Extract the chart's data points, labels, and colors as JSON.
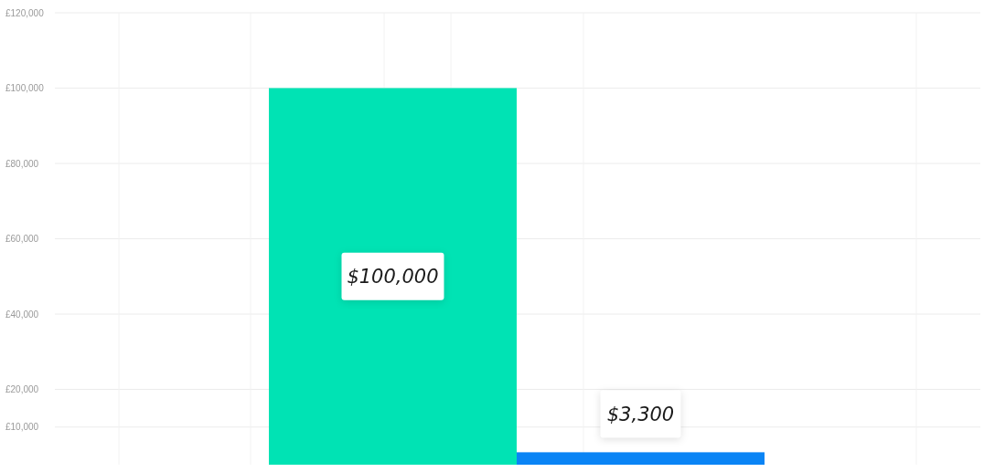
{
  "chart_data": {
    "type": "bar",
    "categories": [
      null,
      null
    ],
    "values": [
      100000,
      3300
    ],
    "colors": [
      "#00e3b4",
      "#0a84f5"
    ],
    "value_labels": [
      "$100,000",
      "$3,300"
    ],
    "ylim": [
      0,
      120000
    ],
    "yticks": [
      {
        "value": 120000,
        "label": "£120,000"
      },
      {
        "value": 100000,
        "label": "£100,000"
      },
      {
        "value": 80000,
        "label": "£80,000"
      },
      {
        "value": 60000,
        "label": "£60,000"
      },
      {
        "value": 40000,
        "label": "£40,000"
      },
      {
        "value": 20000,
        "label": "£20,000"
      },
      {
        "value": 10000,
        "label": "£10,000"
      }
    ],
    "grid": true
  }
}
